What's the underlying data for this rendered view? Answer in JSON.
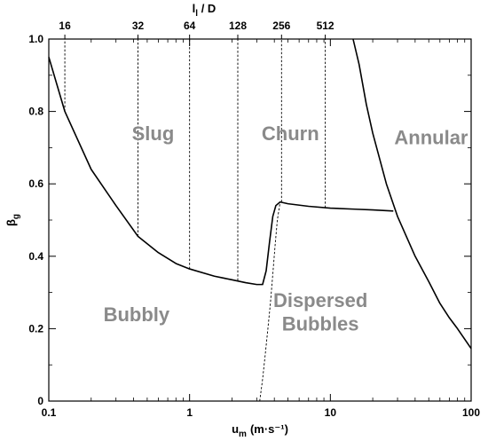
{
  "chart_data": {
    "type": "line",
    "xlabel": "u",
    "xlabel_sub": "m",
    "xlabel_unit": "(m·s⁻¹)",
    "ylabel": "β",
    "ylabel_sub": "g",
    "top_axis_label_main": "l",
    "top_axis_label_sub": "l",
    "top_axis_label_rest": " / D",
    "x_scale": "log",
    "xlim": [
      0.1,
      100
    ],
    "ylim": [
      0,
      1.0
    ],
    "grid": false,
    "x_ticks": [
      {
        "value": 0.1,
        "label": "0.1"
      },
      {
        "value": 1,
        "label": "1"
      },
      {
        "value": 10,
        "label": "10"
      },
      {
        "value": 100,
        "label": "100"
      }
    ],
    "y_ticks": [
      {
        "value": 0,
        "label": "0"
      },
      {
        "value": 0.2,
        "label": "0.2"
      },
      {
        "value": 0.4,
        "label": "0.4"
      },
      {
        "value": 0.6,
        "label": "0.6"
      },
      {
        "value": 0.8,
        "label": "0.8"
      },
      {
        "value": 1.0,
        "label": "1.0"
      }
    ],
    "top_ticks": [
      {
        "x": 0.13,
        "label": "16"
      },
      {
        "x": 0.43,
        "label": "32"
      },
      {
        "x": 1.0,
        "label": "64"
      },
      {
        "x": 2.2,
        "label": "128"
      },
      {
        "x": 4.5,
        "label": "256"
      },
      {
        "x": 9.2,
        "label": "512"
      }
    ],
    "region_labels": [
      {
        "text": "Slug",
        "x": 0.55,
        "y": 0.72
      },
      {
        "text": "Churn",
        "x": 5.2,
        "y": 0.72
      },
      {
        "text": "Annular",
        "x": 52,
        "y": 0.71
      },
      {
        "text": "Bubbly",
        "x": 0.42,
        "y": 0.22
      },
      {
        "text": "Dispersed",
        "x": 8.5,
        "y": 0.26
      },
      {
        "text": "Bubbles",
        "x": 8.5,
        "y": 0.195
      }
    ],
    "series": [
      {
        "x": [
          0.1,
          0.13,
          0.2,
          0.3,
          0.43,
          0.6,
          0.8,
          1.0,
          1.5,
          2.0,
          2.5,
          3.0,
          3.3,
          3.5,
          3.7,
          3.9,
          4.1,
          4.4,
          5,
          7,
          10,
          15,
          20,
          28
        ],
        "y": [
          0.95,
          0.8,
          0.64,
          0.54,
          0.455,
          0.41,
          0.38,
          0.365,
          0.345,
          0.335,
          0.327,
          0.322,
          0.322,
          0.36,
          0.44,
          0.51,
          0.54,
          0.55,
          0.545,
          0.538,
          0.533,
          0.53,
          0.528,
          0.525
        ]
      },
      {
        "x": [
          14.5,
          16,
          18,
          20,
          25,
          30,
          40,
          50,
          60,
          70,
          80,
          100
        ],
        "y": [
          1.0,
          0.93,
          0.82,
          0.74,
          0.6,
          0.51,
          0.4,
          0.33,
          0.27,
          0.23,
          0.2,
          0.145
        ]
      },
      {
        "style": "dashed",
        "x": [
          3.15,
          3.3,
          3.45,
          3.6,
          3.75,
          3.9,
          4.05,
          4.2,
          4.4
        ],
        "y": [
          0.0,
          0.06,
          0.13,
          0.2,
          0.27,
          0.35,
          0.43,
          0.5,
          0.55
        ]
      },
      {
        "style": "dashed",
        "x": [
          0.13,
          0.13
        ],
        "y": [
          0.8,
          1.0
        ]
      },
      {
        "style": "dashed",
        "x": [
          0.43,
          0.43
        ],
        "y": [
          0.455,
          1.0
        ]
      },
      {
        "style": "dashed",
        "x": [
          1.0,
          1.0
        ],
        "y": [
          0.365,
          1.0
        ]
      },
      {
        "style": "dashed",
        "x": [
          2.2,
          2.2
        ],
        "y": [
          0.333,
          1.0
        ]
      },
      {
        "style": "dashed",
        "x": [
          4.5,
          4.5
        ],
        "y": [
          0.55,
          1.0
        ]
      },
      {
        "style": "dashed",
        "x": [
          9.2,
          9.2
        ],
        "y": [
          0.534,
          1.0
        ]
      }
    ]
  }
}
